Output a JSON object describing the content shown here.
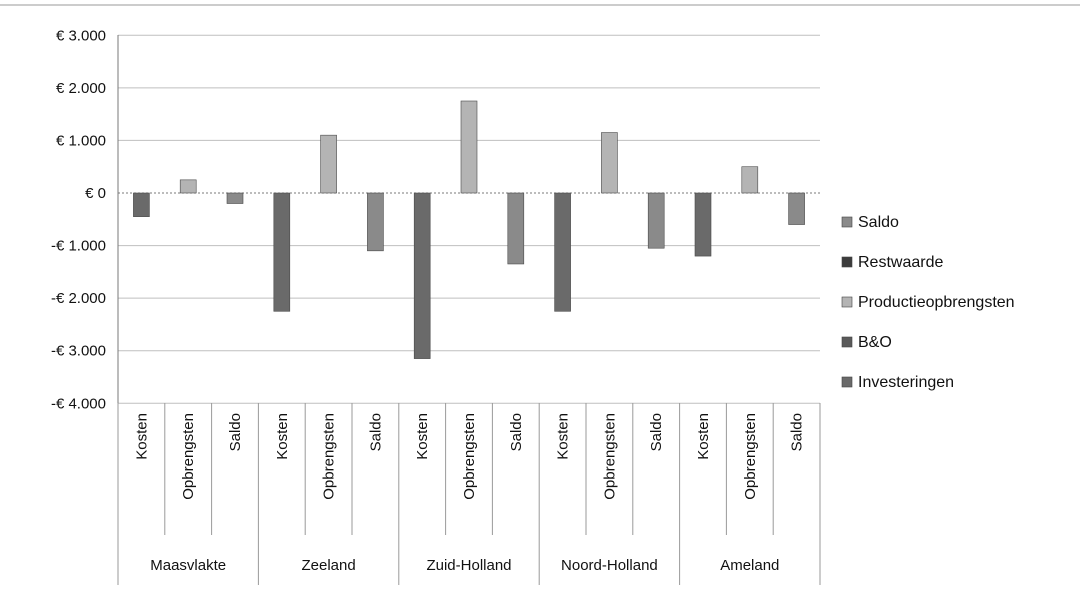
{
  "chart_data": {
    "type": "bar",
    "title": "",
    "xlabel": "",
    "ylabel": "",
    "ylim": [
      -4000,
      3000
    ],
    "yticks": [
      3000,
      2000,
      1000,
      0,
      -1000,
      -2000,
      -3000,
      -4000
    ],
    "ytick_labels": [
      "€ 3.000",
      "€ 2.000",
      "€ 1.000",
      "€ 0",
      "-€ 1.000",
      "-€ 2.000",
      "-€ 3.000",
      "-€ 4.000"
    ],
    "grid": "horizontal",
    "legend_position": "right",
    "categories": [
      {
        "group": "Maasvlakte",
        "label": "Kosten"
      },
      {
        "group": "Maasvlakte",
        "label": "Opbrengsten"
      },
      {
        "group": "Maasvlakte",
        "label": "Saldo"
      },
      {
        "group": "Zeeland",
        "label": "Kosten"
      },
      {
        "group": "Zeeland",
        "label": "Opbrengsten"
      },
      {
        "group": "Zeeland",
        "label": "Saldo"
      },
      {
        "group": "Zuid-Holland",
        "label": "Kosten"
      },
      {
        "group": "Zuid-Holland",
        "label": "Opbrengsten"
      },
      {
        "group": "Zuid-Holland",
        "label": "Saldo"
      },
      {
        "group": "Noord-Holland",
        "label": "Kosten"
      },
      {
        "group": "Noord-Holland",
        "label": "Opbrengsten"
      },
      {
        "group": "Noord-Holland",
        "label": "Saldo"
      },
      {
        "group": "Ameland",
        "label": "Kosten"
      },
      {
        "group": "Ameland",
        "label": "Opbrengsten"
      },
      {
        "group": "Ameland",
        "label": "Saldo"
      }
    ],
    "groups": [
      "Maasvlakte",
      "Zeeland",
      "Zuid-Holland",
      "Noord-Holland",
      "Ameland"
    ],
    "series": [
      {
        "name": "Saldo",
        "color": "#8a8a8a",
        "values": [
          0,
          0,
          -200,
          0,
          0,
          -1100,
          0,
          0,
          -1350,
          0,
          0,
          -1050,
          0,
          0,
          -600
        ]
      },
      {
        "name": "Restwaarde",
        "color": "#3c3c3c",
        "values": [
          0,
          0,
          0,
          0,
          0,
          0,
          0,
          0,
          0,
          0,
          0,
          0,
          0,
          0,
          0
        ]
      },
      {
        "name": "Productieopbrengsten",
        "color": "#b4b4b4",
        "values": [
          0,
          250,
          0,
          0,
          1100,
          0,
          0,
          1750,
          0,
          0,
          1150,
          0,
          0,
          500,
          0
        ]
      },
      {
        "name": "B&O",
        "color": "#5a5a5a",
        "values": [
          0,
          0,
          0,
          0,
          0,
          0,
          0,
          0,
          0,
          0,
          0,
          0,
          0,
          0,
          0
        ]
      },
      {
        "name": "Investeringen",
        "color": "#6a6a6a",
        "values": [
          -450,
          0,
          0,
          -2250,
          0,
          0,
          -3150,
          0,
          0,
          -2250,
          0,
          0,
          -1200,
          0,
          0
        ]
      }
    ]
  }
}
